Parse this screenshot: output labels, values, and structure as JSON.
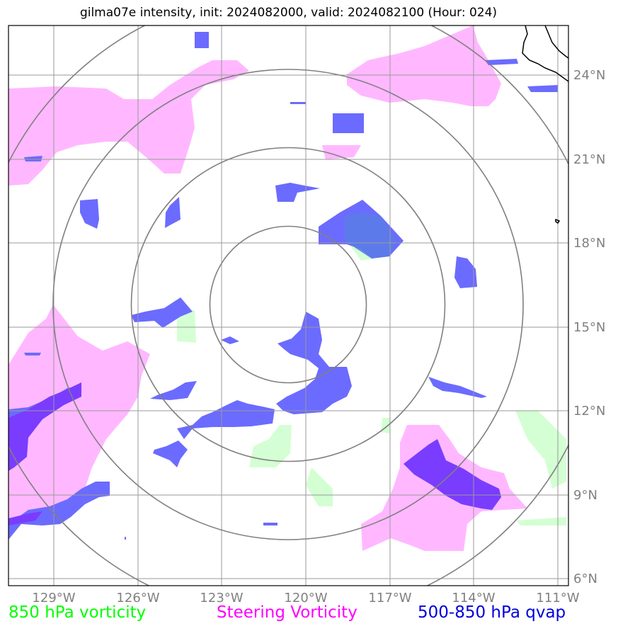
{
  "title": "gilma07e intensity, init: 2024082000, valid: 2024082100 (Hour: 024)",
  "lon_labels": [
    "129°W",
    "126°W",
    "123°W",
    "120°W",
    "117°W",
    "114°W",
    "111°W"
  ],
  "lat_labels": [
    "24°N",
    "21°N",
    "18°N",
    "15°N",
    "12°N",
    "9°N",
    "6°N"
  ],
  "legend": [
    {
      "label": "850 hPa vorticity",
      "color": "#00ff00"
    },
    {
      "label": "Steering Vorticity",
      "color": "#ff00ff"
    },
    {
      "label": "500-850 hPa qvap",
      "color": "#0000dd"
    }
  ],
  "colors": {
    "vorticity_fill": "#ccffcc",
    "steering_fill": "#ffb8ff",
    "qvap_fill": "#6b6bff",
    "qvap_strong": "#7a3cff",
    "grid": "#9a9a9a",
    "range_ring": "#808080",
    "coastline": "#000000"
  },
  "range_rings": 4,
  "coastline": "upper-right"
}
